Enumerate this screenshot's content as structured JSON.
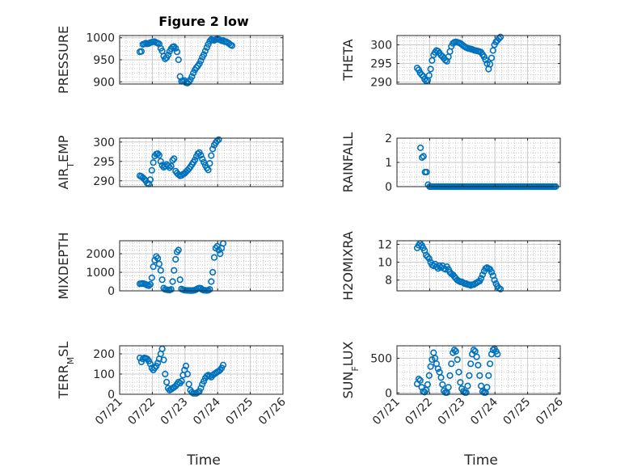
{
  "figure": {
    "title": "Figure 2 low",
    "xlabel": "Time"
  },
  "colors": {
    "marker": "#0072bd",
    "axis": "#262626",
    "grid": "#c8c8c8",
    "grid_minor": "#b4b4b4"
  },
  "chart_data": [
    {
      "type": "scatter",
      "ylabel": "PRESSURE",
      "ylabel_parts": [
        [
          "PRESSURE",
          0
        ]
      ],
      "ylim": [
        895,
        1005
      ],
      "yticks": [
        900,
        950,
        1000
      ],
      "ytick_labels": [
        "900",
        "950",
        "1000"
      ],
      "xlim": [
        0,
        5
      ],
      "xticks": [
        0,
        1,
        2,
        3,
        4,
        5
      ],
      "xtick_labels": [
        "07/21",
        "07/22",
        "07/23",
        "07/24",
        "07/25",
        "07/26"
      ],
      "show_xticklabels": false,
      "x_start": 0.62,
      "x_step": 0.0455,
      "y": [
        968,
        969,
        985,
        986,
        988,
        986,
        987,
        989,
        990,
        991,
        991,
        989,
        988,
        986,
        976,
        970,
        958,
        952,
        955,
        961,
        969,
        975,
        979,
        980,
        976,
        968,
        950,
        912,
        901,
        902,
        903,
        898,
        897,
        900,
        905,
        912,
        920,
        927,
        932,
        936,
        941,
        948,
        956,
        962,
        970,
        978,
        985,
        992,
        996,
        995,
        994,
        996,
        997,
        996,
        995,
        993,
        994,
        991,
        991,
        989,
        987,
        984,
        982
      ]
    },
    {
      "type": "scatter",
      "ylabel": "THETA",
      "ylabel_parts": [
        [
          "THETA",
          0
        ]
      ],
      "ylim": [
        289.5,
        302.5
      ],
      "yticks": [
        290,
        295,
        300
      ],
      "ytick_labels": [
        "290",
        "295",
        "300"
      ],
      "xlim": [
        0,
        5
      ],
      "xticks": [
        0,
        1,
        2,
        3,
        4,
        5
      ],
      "xtick_labels": [
        "07/21",
        "07/22",
        "07/23",
        "07/24",
        "07/25",
        "07/26"
      ],
      "show_xticklabels": false,
      "x_start": 0.62,
      "x_step": 0.0455,
      "y": [
        293.8,
        293.3,
        292.5,
        292.0,
        291.6,
        290.8,
        290.3,
        290.5,
        291.8,
        293.5,
        295.8,
        297.3,
        298.0,
        298.5,
        298.3,
        297.8,
        297.2,
        296.9,
        296.4,
        295.9,
        295.6,
        296.8,
        298.2,
        299.6,
        300.4,
        300.7,
        300.8,
        300.7,
        300.6,
        300.4,
        300.1,
        299.8,
        299.5,
        299.3,
        299.1,
        299.0,
        298.9,
        298.8,
        298.6,
        298.5,
        298.4,
        298.3,
        298.2,
        298.0,
        297.4,
        296.8,
        296.0,
        295.0,
        293.5,
        294.8,
        296.5,
        298.5,
        300.0,
        300.8,
        301.2,
        301.7,
        302.1
      ]
    },
    {
      "type": "scatter",
      "ylabel": "AIR_TEMP",
      "ylabel_parts": [
        [
          "AIR",
          0
        ],
        [
          "T",
          1
        ],
        [
          "EMP",
          0
        ]
      ],
      "ylim": [
        288.5,
        301
      ],
      "yticks": [
        290,
        295,
        300
      ],
      "ytick_labels": [
        "290",
        "295",
        "300"
      ],
      "xlim": [
        0,
        5
      ],
      "xticks": [
        0,
        1,
        2,
        3,
        4,
        5
      ],
      "xtick_labels": [
        "07/21",
        "07/22",
        "07/23",
        "07/24",
        "07/25",
        "07/26"
      ],
      "show_xticklabels": false,
      "x_start": 0.62,
      "x_step": 0.0455,
      "y": [
        291.3,
        291.1,
        290.8,
        290.4,
        290.0,
        289.4,
        289.2,
        290.3,
        292.7,
        294.7,
        296.4,
        296.9,
        297.0,
        296.6,
        295.0,
        294.0,
        293.5,
        293.8,
        294.2,
        293.9,
        293.4,
        293.8,
        295.3,
        295.7,
        292.5,
        292.0,
        291.6,
        291.3,
        291.4,
        291.7,
        291.9,
        292.3,
        292.7,
        293.1,
        293.6,
        294.2,
        294.8,
        295.4,
        296.3,
        297.0,
        297.3,
        296.6,
        295.6,
        294.8,
        294.0,
        293.3,
        292.8,
        294.5,
        296.5,
        298.2,
        299.2,
        299.8,
        300.3,
        300.6
      ]
    },
    {
      "type": "scatter",
      "ylabel": "RAINFALL",
      "ylabel_parts": [
        [
          "RAINFALL",
          0
        ]
      ],
      "ylim": [
        0,
        2
      ],
      "yticks": [
        0,
        1,
        2
      ],
      "ytick_labels": [
        "0",
        "1",
        "2"
      ],
      "xlim": [
        0,
        5
      ],
      "xticks": [
        0,
        1,
        2,
        3,
        4,
        5
      ],
      "xtick_labels": [
        "07/21",
        "07/22",
        "07/23",
        "07/24",
        "07/25",
        "07/26"
      ],
      "show_xticklabels": false,
      "x_start": 0.72,
      "x_step": 0.0465,
      "y": [
        1.6,
        1.2,
        1.25,
        0.6,
        0.6,
        0.08,
        0,
        0,
        0,
        0,
        0,
        0,
        0,
        0,
        0,
        0,
        0,
        0,
        0,
        0,
        0,
        0,
        0,
        0,
        0,
        0,
        0,
        0,
        0,
        0,
        0,
        0,
        0,
        0,
        0,
        0,
        0,
        0,
        0,
        0,
        0,
        0,
        0,
        0,
        0,
        0,
        0,
        0,
        0,
        0,
        0,
        0,
        0,
        0,
        0,
        0,
        0,
        0,
        0,
        0,
        0,
        0,
        0,
        0,
        0,
        0,
        0,
        0,
        0,
        0,
        0,
        0,
        0,
        0,
        0,
        0,
        0,
        0,
        0,
        0,
        0,
        0,
        0,
        0,
        0,
        0,
        0,
        0,
        0,
        0
      ]
    },
    {
      "type": "scatter",
      "ylabel": "MIXDEPTH",
      "ylabel_parts": [
        [
          "MIXDEPTH",
          0
        ]
      ],
      "ylim": [
        0,
        2700
      ],
      "yticks": [
        0,
        1000,
        2000
      ],
      "ytick_labels": [
        "0",
        "1000",
        "2000"
      ],
      "xlim": [
        0,
        5
      ],
      "xticks": [
        0,
        1,
        2,
        3,
        4,
        5
      ],
      "xtick_labels": [
        "07/21",
        "07/22",
        "07/23",
        "07/24",
        "07/25",
        "07/26"
      ],
      "show_xticklabels": false,
      "x_start": 0.62,
      "x_step": 0.0455,
      "y": [
        380,
        390,
        395,
        380,
        350,
        300,
        280,
        350,
        700,
        1300,
        1650,
        1850,
        1750,
        1450,
        1100,
        600,
        150,
        80,
        60,
        50,
        40,
        80,
        500,
        1100,
        1700,
        2100,
        2200,
        600,
        100,
        60,
        40,
        30,
        20,
        20,
        15,
        15,
        20,
        40,
        80,
        120,
        150,
        140,
        60,
        30,
        25,
        20,
        30,
        80,
        500,
        1000,
        1800,
        2300,
        2400,
        2200,
        2000,
        2300,
        2550
      ]
    },
    {
      "type": "scatter",
      "ylabel": "H2OMIXRA",
      "ylabel_parts": [
        [
          "H2OMIXRA",
          0
        ]
      ],
      "ylim": [
        6.8,
        12.4
      ],
      "yticks": [
        8,
        10,
        12
      ],
      "ytick_labels": [
        "8",
        "10",
        "12"
      ],
      "xlim": [
        0,
        5
      ],
      "xticks": [
        0,
        1,
        2,
        3,
        4,
        5
      ],
      "xtick_labels": [
        "07/21",
        "07/22",
        "07/23",
        "07/24",
        "07/25",
        "07/26"
      ],
      "show_xticklabels": false,
      "x_start": 0.62,
      "x_step": 0.0455,
      "y": [
        11.6,
        11.9,
        12.1,
        11.9,
        11.6,
        11.3,
        10.8,
        10.6,
        10.4,
        10.0,
        9.7,
        9.6,
        9.8,
        9.5,
        9.3,
        9.6,
        9.4,
        9.6,
        9.3,
        9.2,
        9.5,
        9.2,
        8.9,
        8.7,
        8.6,
        8.4,
        8.2,
        8.0,
        7.9,
        7.8,
        7.8,
        7.7,
        7.6,
        7.6,
        7.5,
        7.5,
        7.4,
        7.5,
        7.5,
        7.6,
        7.7,
        7.8,
        7.9,
        8.2,
        8.6,
        9.0,
        9.3,
        9.4,
        9.3,
        9.2,
        8.9,
        8.5,
        8.0,
        7.6,
        7.3,
        7.1,
        7.0
      ]
    },
    {
      "type": "scatter",
      "ylabel": "TERR_MSL",
      "ylabel_parts": [
        [
          "TERR",
          0
        ],
        [
          "M",
          1
        ],
        [
          "SL",
          0
        ]
      ],
      "ylim": [
        0,
        240
      ],
      "yticks": [
        0,
        100,
        200
      ],
      "ytick_labels": [
        "0",
        "100",
        "200"
      ],
      "xlim": [
        0,
        5
      ],
      "xticks": [
        0,
        1,
        2,
        3,
        4,
        5
      ],
      "xtick_labels": [
        "07/21",
        "07/22",
        "07/23",
        "07/24",
        "07/25",
        "07/26"
      ],
      "show_xticklabels": true,
      "x_start": 0.62,
      "x_step": 0.0455,
      "y": [
        180,
        160,
        175,
        180,
        178,
        175,
        165,
        150,
        130,
        120,
        130,
        140,
        155,
        175,
        200,
        225,
        170,
        100,
        60,
        30,
        20,
        25,
        30,
        35,
        40,
        50,
        60,
        55,
        65,
        95,
        120,
        140,
        100,
        50,
        20,
        10,
        5,
        5,
        5,
        10,
        15,
        30,
        50,
        65,
        80,
        90,
        95,
        90,
        85,
        95,
        100,
        105,
        110,
        115,
        120,
        130,
        145
      ]
    },
    {
      "type": "scatter",
      "ylabel": "SUN_FLUX",
      "ylabel_parts": [
        [
          "SUN",
          0
        ],
        [
          "F",
          1
        ],
        [
          "LUX",
          0
        ]
      ],
      "ylim": [
        -20,
        680
      ],
      "yticks": [
        0,
        500
      ],
      "ytick_labels": [
        "0",
        "500"
      ],
      "xlim": [
        0,
        5
      ],
      "xticks": [
        0,
        1,
        2,
        3,
        4,
        5
      ],
      "xtick_labels": [
        "07/21",
        "07/22",
        "07/23",
        "07/24",
        "07/25",
        "07/26"
      ],
      "show_xticklabels": true,
      "x_start": 0.62,
      "x_step": 0.0455,
      "y": [
        130,
        200,
        180,
        80,
        20,
        10,
        40,
        120,
        250,
        380,
        480,
        580,
        500,
        420,
        350,
        300,
        220,
        120,
        30,
        5,
        5,
        80,
        250,
        420,
        580,
        620,
        600,
        480,
        300,
        150,
        60,
        20,
        5,
        5,
        100,
        250,
        420,
        560,
        620,
        600,
        520,
        400,
        250,
        100,
        20,
        5,
        5,
        80,
        250,
        420,
        560,
        620,
        640,
        600,
        560
      ]
    }
  ]
}
